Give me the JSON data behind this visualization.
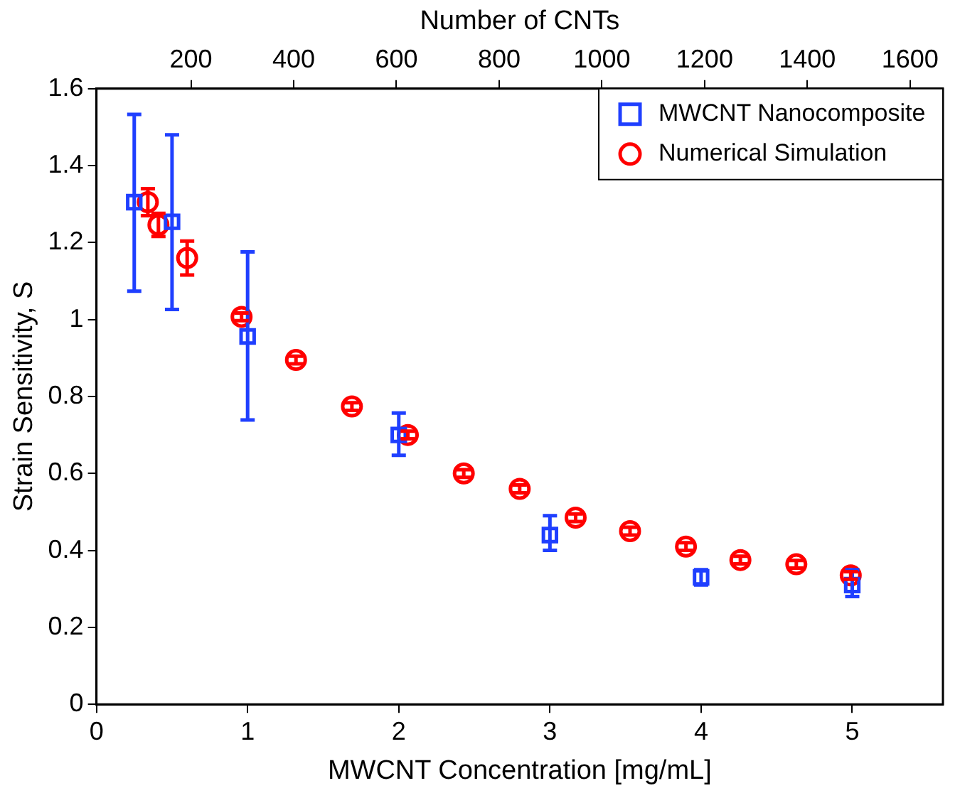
{
  "chart_data": {
    "type": "scatter",
    "xlabel": "MWCNT Concentration [mg/mL]",
    "ylabel": "Strain Sensitivity, S",
    "x2label": "Number of CNTs",
    "xlim": [
      0,
      5.6
    ],
    "xticks": [
      0,
      1,
      2,
      3,
      4,
      5
    ],
    "ylim": [
      0,
      1.6
    ],
    "yticks": [
      0,
      0.2,
      0.4,
      0.6,
      0.8,
      1,
      1.2,
      1.4,
      1.6
    ],
    "x2lim": [
      16,
      1664
    ],
    "x2ticks": [
      200,
      400,
      600,
      800,
      1000,
      1200,
      1400,
      1600
    ],
    "legend": "top right",
    "series": [
      {
        "name": "MWCNT Nanocomposite",
        "color": "#1f3fff",
        "marker": "square",
        "x": [
          0.25,
          0.5,
          1,
          2,
          3,
          4,
          5
        ],
        "values": [
          1.305,
          1.254,
          0.956,
          0.7,
          0.44,
          0.33,
          0.31
        ],
        "errors": [
          [
            1.074,
            1.533
          ],
          [
            1.026,
            1.48
          ],
          [
            0.739,
            1.176
          ],
          [
            0.647,
            0.757
          ],
          [
            0.4,
            0.49
          ],
          [
            0.31,
            0.35
          ],
          [
            0.28,
            0.35
          ]
        ]
      },
      {
        "name": "Numerical Simulation",
        "color": "#ff0000",
        "marker": "circle",
        "x": [
          0.34,
          0.41,
          0.6,
          0.96,
          1.32,
          1.69,
          2.06,
          2.43,
          2.8,
          3.17,
          3.53,
          3.9,
          4.26,
          4.63,
          4.99
        ],
        "values": [
          1.305,
          1.246,
          1.16,
          1.007,
          0.895,
          0.774,
          0.7,
          0.6,
          0.56,
          0.485,
          0.45,
          0.41,
          0.375,
          0.364,
          0.335
        ],
        "errors": [
          0.035,
          0.03,
          0.044,
          0.01,
          0.01,
          0.01,
          0.01,
          0.01,
          0.01,
          0.01,
          0.01,
          0.01,
          0.01,
          0.01,
          0.01
        ]
      }
    ]
  }
}
